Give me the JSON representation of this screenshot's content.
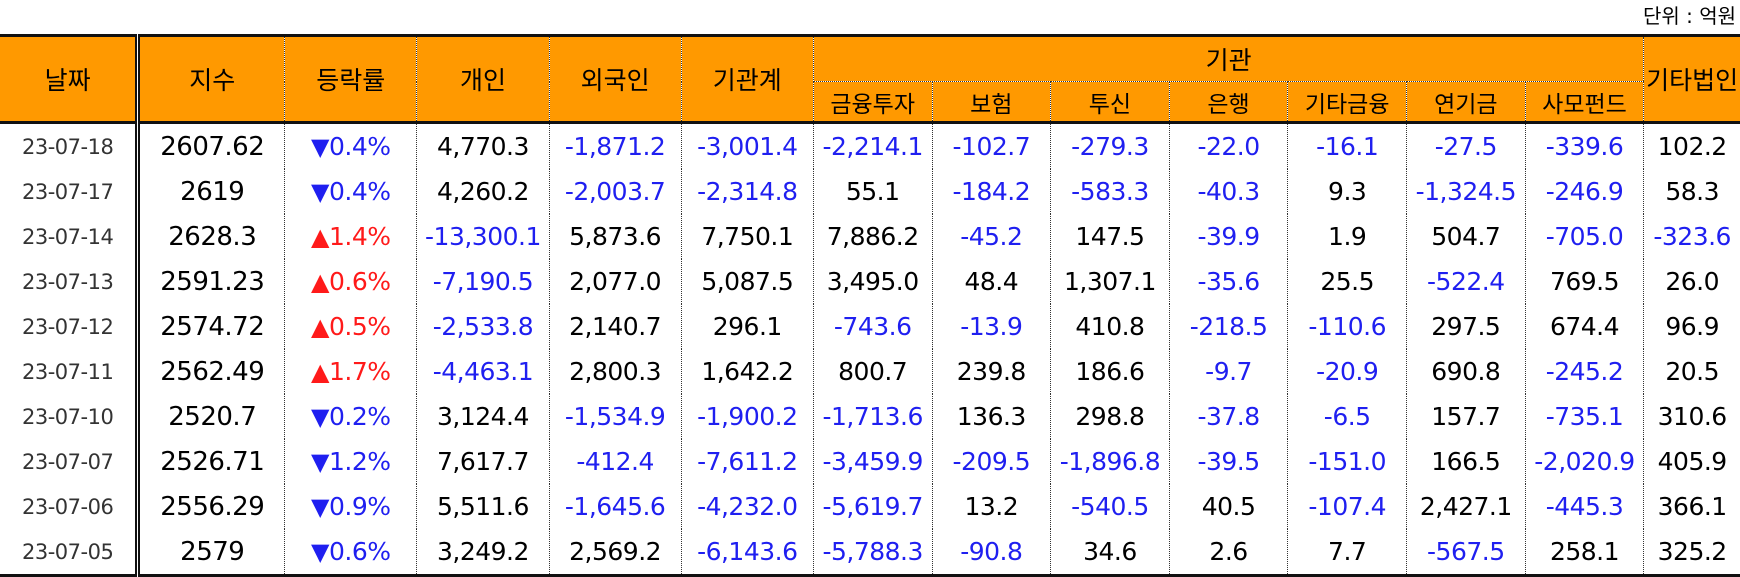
{
  "unit_label": "단위 : 억원",
  "headers": {
    "date": "날짜",
    "index": "지수",
    "change": "등락률",
    "individual": "개인",
    "foreign": "외국인",
    "institution_total": "기관계",
    "institution": "기관",
    "inst_sub": [
      "금융투자",
      "보험",
      "투신",
      "은행",
      "기타금융",
      "연기금",
      "사모펀드"
    ],
    "other_corp": "기타법인"
  },
  "rows": [
    {
      "date": "23-07-18",
      "index": "2607.62",
      "dir": "down",
      "arrow": "▼",
      "pct": "0.4%",
      "values": [
        "4,770.3",
        "-1,871.2",
        "-3,001.4",
        "-2,214.1",
        "-102.7",
        "-279.3",
        "-22.0",
        "-16.1",
        "-27.5",
        "-339.6",
        "102.2"
      ]
    },
    {
      "date": "23-07-17",
      "index": "2619",
      "dir": "down",
      "arrow": "▼",
      "pct": "0.4%",
      "values": [
        "4,260.2",
        "-2,003.7",
        "-2,314.8",
        "55.1",
        "-184.2",
        "-583.3",
        "-40.3",
        "9.3",
        "-1,324.5",
        "-246.9",
        "58.3"
      ]
    },
    {
      "date": "23-07-14",
      "index": "2628.3",
      "dir": "up",
      "arrow": "▲",
      "pct": "1.4%",
      "values": [
        "-13,300.1",
        "5,873.6",
        "7,750.1",
        "7,886.2",
        "-45.2",
        "147.5",
        "-39.9",
        "1.9",
        "504.7",
        "-705.0",
        "-323.6"
      ]
    },
    {
      "date": "23-07-13",
      "index": "2591.23",
      "dir": "up",
      "arrow": "▲",
      "pct": "0.6%",
      "values": [
        "-7,190.5",
        "2,077.0",
        "5,087.5",
        "3,495.0",
        "48.4",
        "1,307.1",
        "-35.6",
        "25.5",
        "-522.4",
        "769.5",
        "26.0"
      ]
    },
    {
      "date": "23-07-12",
      "index": "2574.72",
      "dir": "up",
      "arrow": "▲",
      "pct": "0.5%",
      "values": [
        "-2,533.8",
        "2,140.7",
        "296.1",
        "-743.6",
        "-13.9",
        "410.8",
        "-218.5",
        "-110.6",
        "297.5",
        "674.4",
        "96.9"
      ]
    },
    {
      "date": "23-07-11",
      "index": "2562.49",
      "dir": "up",
      "arrow": "▲",
      "pct": "1.7%",
      "values": [
        "-4,463.1",
        "2,800.3",
        "1,642.2",
        "800.7",
        "239.8",
        "186.6",
        "-9.7",
        "-20.9",
        "690.8",
        "-245.2",
        "20.5"
      ]
    },
    {
      "date": "23-07-10",
      "index": "2520.7",
      "dir": "down",
      "arrow": "▼",
      "pct": "0.2%",
      "values": [
        "3,124.4",
        "-1,534.9",
        "-1,900.2",
        "-1,713.6",
        "136.3",
        "298.8",
        "-37.8",
        "-6.5",
        "157.7",
        "-735.1",
        "310.6"
      ]
    },
    {
      "date": "23-07-07",
      "index": "2526.71",
      "dir": "down",
      "arrow": "▼",
      "pct": "1.2%",
      "values": [
        "7,617.7",
        "-412.4",
        "-7,611.2",
        "-3,459.9",
        "-209.5",
        "-1,896.8",
        "-39.5",
        "-151.0",
        "166.5",
        "-2,020.9",
        "405.9"
      ]
    },
    {
      "date": "23-07-06",
      "index": "2556.29",
      "dir": "down",
      "arrow": "▼",
      "pct": "0.9%",
      "values": [
        "5,511.6",
        "-1,645.6",
        "-4,232.0",
        "-5,619.7",
        "13.2",
        "-540.5",
        "40.5",
        "-107.4",
        "2,427.1",
        "-445.3",
        "366.1"
      ]
    },
    {
      "date": "23-07-05",
      "index": "2579",
      "dir": "down",
      "arrow": "▼",
      "pct": "0.6%",
      "values": [
        "3,249.2",
        "2,569.2",
        "-6,143.6",
        "-5,788.3",
        "-90.8",
        "34.6",
        "2.6",
        "7.7",
        "-567.5",
        "258.1",
        "325.2"
      ]
    }
  ],
  "colors": {
    "header_bg": "#ff9900",
    "negative": "#1f1ff0",
    "up": "#ff1a1a",
    "down": "#1f1ff0"
  }
}
